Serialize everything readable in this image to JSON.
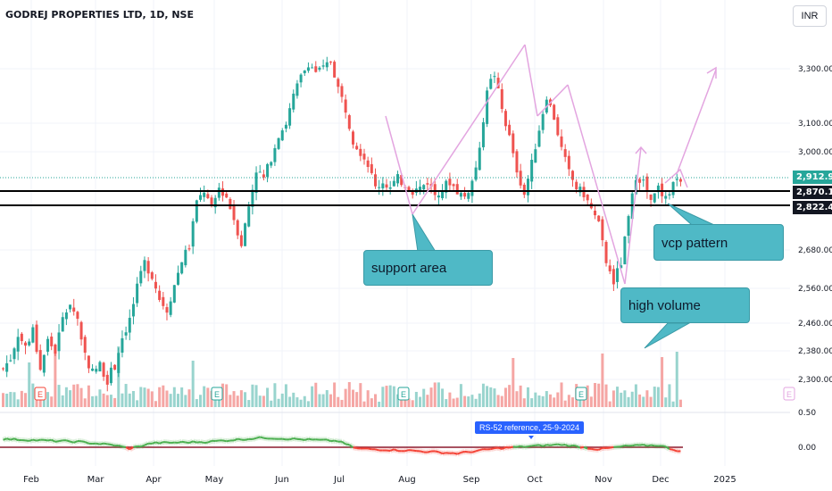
{
  "header": {
    "title": "GODREJ PROPERTIES LTD, 1D, NSE",
    "currency": "INR"
  },
  "price_labels": {
    "last": "2,912.90",
    "line_upper": "2,870.10",
    "line_lower": "2,822.40"
  },
  "annotations": {
    "support": "support area",
    "vcp": "vcp pattern",
    "volume": "high volume",
    "rs_tooltip": "RS-52 reference, 25-9-2024"
  },
  "colors": {
    "up": "#26a69a",
    "down": "#ef5350",
    "vol_up": "#99d4ce",
    "vol_down": "#f5a6a4",
    "annotation_line": "#e3a5e0",
    "callout": "#4fb9c6",
    "rs_line_up": "#4caf50",
    "rs_line_down": "#f44336",
    "rs_zero": "#8b1a2f"
  },
  "chart_data": {
    "type": "candlestick",
    "y_ticks": [
      "3,300.00",
      "3,100.00",
      "3,000.00",
      "2,680.00",
      "2,560.00",
      "2,460.00",
      "2,380.00",
      "2,300.00"
    ],
    "x_ticks": [
      "Feb",
      "Mar",
      "Apr",
      "May",
      "Jun",
      "Jul",
      "Aug",
      "Sep",
      "Oct",
      "Nov",
      "Dec",
      "2025"
    ],
    "horizontal_lines": [
      2870.1,
      2822.4
    ],
    "last_price": 2912.9,
    "close_anchors": [
      [
        0,
        2330
      ],
      [
        2,
        2360
      ],
      [
        4,
        2430
      ],
      [
        6,
        2390
      ],
      [
        8,
        2440
      ],
      [
        10,
        2330
      ],
      [
        12,
        2410
      ],
      [
        14,
        2380
      ],
      [
        16,
        2470
      ],
      [
        18,
        2520
      ],
      [
        20,
        2470
      ],
      [
        22,
        2370
      ],
      [
        24,
        2320
      ],
      [
        26,
        2340
      ],
      [
        28,
        2300
      ],
      [
        30,
        2340
      ],
      [
        32,
        2420
      ],
      [
        34,
        2470
      ],
      [
        36,
        2560
      ],
      [
        38,
        2640
      ],
      [
        40,
        2600
      ],
      [
        42,
        2530
      ],
      [
        44,
        2500
      ],
      [
        46,
        2570
      ],
      [
        48,
        2650
      ],
      [
        50,
        2690
      ],
      [
        52,
        2830
      ],
      [
        54,
        2870
      ],
      [
        56,
        2810
      ],
      [
        58,
        2880
      ],
      [
        60,
        2850
      ],
      [
        62,
        2780
      ],
      [
        64,
        2700
      ],
      [
        66,
        2820
      ],
      [
        68,
        2940
      ],
      [
        70,
        2910
      ],
      [
        72,
        2980
      ],
      [
        74,
        3060
      ],
      [
        76,
        3100
      ],
      [
        78,
        3200
      ],
      [
        80,
        3270
      ],
      [
        82,
        3320
      ],
      [
        84,
        3290
      ],
      [
        86,
        3300
      ],
      [
        88,
        3330
      ],
      [
        90,
        3230
      ],
      [
        92,
        3150
      ],
      [
        94,
        3040
      ],
      [
        96,
        3000
      ],
      [
        98,
        2960
      ],
      [
        100,
        2880
      ],
      [
        102,
        2900
      ],
      [
        104,
        2880
      ],
      [
        106,
        2910
      ],
      [
        108,
        2890
      ],
      [
        110,
        2870
      ],
      [
        112,
        2880
      ],
      [
        114,
        2900
      ],
      [
        116,
        2860
      ],
      [
        118,
        2880
      ],
      [
        120,
        2900
      ],
      [
        122,
        2870
      ],
      [
        124,
        2850
      ],
      [
        126,
        2900
      ],
      [
        128,
        3000
      ],
      [
        130,
        3230
      ],
      [
        132,
        3280
      ],
      [
        134,
        3150
      ],
      [
        136,
        3050
      ],
      [
        138,
        2940
      ],
      [
        140,
        2860
      ],
      [
        142,
        2960
      ],
      [
        144,
        3080
      ],
      [
        146,
        3200
      ],
      [
        148,
        3120
      ],
      [
        150,
        3010
      ],
      [
        152,
        2930
      ],
      [
        154,
        2880
      ],
      [
        156,
        2860
      ],
      [
        158,
        2810
      ],
      [
        160,
        2760
      ],
      [
        162,
        2640
      ],
      [
        164,
        2580
      ],
      [
        166,
        2640
      ],
      [
        168,
        2780
      ],
      [
        170,
        2920
      ],
      [
        172,
        2900
      ],
      [
        174,
        2830
      ],
      [
        176,
        2880
      ],
      [
        178,
        2840
      ],
      [
        180,
        2900
      ],
      [
        182,
        2912.9
      ]
    ],
    "volume_spikes": [
      [
        7,
        50
      ],
      [
        14,
        70
      ],
      [
        31,
        68
      ],
      [
        51,
        52
      ],
      [
        137,
        55
      ],
      [
        161,
        60
      ],
      [
        177,
        56
      ],
      [
        181,
        62
      ]
    ],
    "rs52_anchors": [
      [
        0,
        0.12
      ],
      [
        20,
        0.08
      ],
      [
        30,
        0.03
      ],
      [
        34,
        -0.02
      ],
      [
        40,
        0.06
      ],
      [
        55,
        0.08
      ],
      [
        70,
        0.14
      ],
      [
        82,
        0.11
      ],
      [
        90,
        0.09
      ],
      [
        95,
        -0.02
      ],
      [
        110,
        -0.05
      ],
      [
        122,
        -0.09
      ],
      [
        132,
        -0.02
      ],
      [
        140,
        0.01
      ],
      [
        150,
        0.04
      ],
      [
        160,
        -0.03
      ],
      [
        168,
        0.02
      ],
      [
        176,
        0.03
      ],
      [
        182,
        -0.06
      ]
    ],
    "rs52_ticks": [
      "0.50",
      "0.00"
    ],
    "drawings": {
      "support_lines": [
        [
          [
            432,
            130
          ],
          [
            462,
            240
          ]
        ],
        [
          [
            462,
            240
          ],
          [
            588,
            50
          ]
        ]
      ],
      "decline_line": [
        [
          [
            588,
            50
          ],
          [
            602,
            130
          ]
        ],
        [
          [
            602,
            130
          ],
          [
            636,
            95
          ]
        ],
        [
          [
            636,
            95
          ],
          [
            700,
            318
          ]
        ]
      ],
      "rise_line": [
        [
          [
            700,
            318
          ],
          [
            718,
            165
          ]
        ]
      ],
      "projection": [
        [
          [
            758,
            195
          ],
          [
            802,
            78
          ]
        ]
      ]
    }
  }
}
